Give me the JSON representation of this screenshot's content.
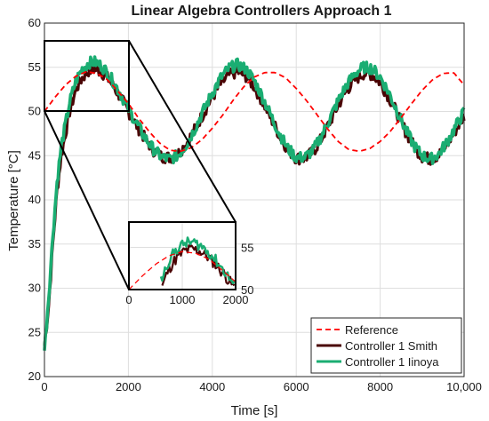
{
  "chart_data": [
    {
      "type": "line",
      "title": "Linear Algebra Controllers Approach 1",
      "xlabel": "Time [s]",
      "ylabel": "Temperature [°C]",
      "xlim": [
        0,
        10000
      ],
      "ylim": [
        20,
        60
      ],
      "xticks": [
        0,
        2000,
        4000,
        6000,
        8000,
        10000
      ],
      "xtick_labels": [
        "0",
        "2000",
        "4000",
        "6000",
        "8000",
        "10,000"
      ],
      "yticks": [
        20,
        25,
        30,
        35,
        40,
        45,
        50,
        55,
        60
      ],
      "grid": true,
      "legend_position": "bottom-right",
      "series": [
        {
          "name": "Reference",
          "style": "dashed",
          "color": "#ff0000",
          "points": [
            [
              0,
              50
            ],
            [
              250,
              51.6
            ],
            [
              500,
              53.0
            ],
            [
              750,
              54.0
            ],
            [
              1000,
              54.5
            ],
            [
              1250,
              54.3
            ],
            [
              1500,
              53.6
            ],
            [
              1750,
              52.3
            ],
            [
              2000,
              50.9
            ],
            [
              2250,
              49.2
            ],
            [
              2500,
              47.7
            ],
            [
              2750,
              46.4
            ],
            [
              3000,
              45.6
            ],
            [
              3250,
              45.5
            ],
            [
              3500,
              45.9
            ],
            [
              3750,
              46.8
            ],
            [
              4000,
              48.1
            ],
            [
              4250,
              49.6
            ],
            [
              4500,
              51.3
            ],
            [
              4750,
              52.8
            ],
            [
              5000,
              53.9
            ],
            [
              5250,
              54.4
            ],
            [
              5500,
              54.4
            ],
            [
              5750,
              53.8
            ],
            [
              6000,
              52.6
            ],
            [
              6250,
              51.2
            ],
            [
              6500,
              49.6
            ],
            [
              6750,
              48.0
            ],
            [
              7000,
              46.6
            ],
            [
              7250,
              45.7
            ],
            [
              7500,
              45.5
            ],
            [
              7750,
              45.8
            ],
            [
              8000,
              46.6
            ],
            [
              8250,
              47.8
            ],
            [
              8500,
              49.3
            ],
            [
              8750,
              50.9
            ],
            [
              9000,
              52.4
            ],
            [
              9250,
              53.6
            ],
            [
              9500,
              54.3
            ],
            [
              9750,
              54.4
            ],
            [
              10000,
              53.0
            ]
          ]
        },
        {
          "name": "Controller 1 Smith",
          "style": "noisy-solid",
          "color": "#4a0404",
          "points": [
            [
              0,
              23.5
            ],
            [
              100,
              28
            ],
            [
              200,
              35
            ],
            [
              300,
              41
            ],
            [
              400,
              45
            ],
            [
              500,
              47.5
            ],
            [
              600,
              50
            ],
            [
              750,
              52.5
            ],
            [
              900,
              53.8
            ],
            [
              1050,
              54.6
            ],
            [
              1200,
              54.8
            ],
            [
              1350,
              54.5
            ],
            [
              1500,
              53.8
            ],
            [
              1650,
              52.8
            ],
            [
              1800,
              51.7
            ],
            [
              2000,
              50
            ],
            [
              2200,
              48.4
            ],
            [
              2400,
              46.9
            ],
            [
              2600,
              45.6
            ],
            [
              2800,
              44.9
            ],
            [
              3000,
              44.8
            ],
            [
              3200,
              45.3
            ],
            [
              3400,
              46.5
            ],
            [
              3600,
              48.1
            ],
            [
              3800,
              49.9
            ],
            [
              4000,
              51.6
            ],
            [
              4200,
              53.1
            ],
            [
              4400,
              54.1
            ],
            [
              4600,
              54.5
            ],
            [
              4800,
              54.0
            ],
            [
              5000,
              52.8
            ],
            [
              5200,
              51.1
            ],
            [
              5400,
              49.2
            ],
            [
              5600,
              47.3
            ],
            [
              5800,
              45.7
            ],
            [
              6000,
              44.7
            ],
            [
              6200,
              44.7
            ],
            [
              6400,
              45.4
            ],
            [
              6600,
              46.9
            ],
            [
              6800,
              48.8
            ],
            [
              7000,
              50.7
            ],
            [
              7200,
              52.4
            ],
            [
              7400,
              53.6
            ],
            [
              7600,
              54.3
            ],
            [
              7800,
              54.2
            ],
            [
              8000,
              53.3
            ],
            [
              8200,
              51.7
            ],
            [
              8400,
              49.8
            ],
            [
              8600,
              47.8
            ],
            [
              8800,
              46.1
            ],
            [
              9000,
              44.9
            ],
            [
              9200,
              44.6
            ],
            [
              9400,
              45.1
            ],
            [
              9600,
              46.3
            ],
            [
              9800,
              47.9
            ],
            [
              10000,
              49.5
            ]
          ]
        },
        {
          "name": "Controller 1 Iinoya",
          "style": "noisy-solid",
          "color": "#1aad72",
          "points": [
            [
              0,
              23.0
            ],
            [
              100,
              29
            ],
            [
              200,
              36
            ],
            [
              300,
              42
            ],
            [
              400,
              46
            ],
            [
              500,
              48.5
            ],
            [
              600,
              51
            ],
            [
              750,
              53.5
            ],
            [
              900,
              54.8
            ],
            [
              1050,
              55.5
            ],
            [
              1200,
              55.6
            ],
            [
              1350,
              55.2
            ],
            [
              1500,
              54.4
            ],
            [
              1650,
              53.3
            ],
            [
              1800,
              52.1
            ],
            [
              2000,
              50.3
            ],
            [
              2200,
              48.6
            ],
            [
              2400,
              47.0
            ],
            [
              2600,
              45.7
            ],
            [
              2800,
              44.8
            ],
            [
              3000,
              44.6
            ],
            [
              3200,
              45.1
            ],
            [
              3400,
              46.4
            ],
            [
              3600,
              48.2
            ],
            [
              3800,
              50.2
            ],
            [
              4000,
              52.1
            ],
            [
              4200,
              53.8
            ],
            [
              4400,
              54.9
            ],
            [
              4600,
              55.3
            ],
            [
              4800,
              54.8
            ],
            [
              5000,
              53.5
            ],
            [
              5200,
              51.6
            ],
            [
              5400,
              49.5
            ],
            [
              5600,
              47.5
            ],
            [
              5800,
              45.8
            ],
            [
              6000,
              44.8
            ],
            [
              6200,
              44.8
            ],
            [
              6400,
              45.6
            ],
            [
              6600,
              47.2
            ],
            [
              6800,
              49.2
            ],
            [
              7000,
              51.2
            ],
            [
              7200,
              53.0
            ],
            [
              7400,
              54.3
            ],
            [
              7600,
              55.0
            ],
            [
              7800,
              54.9
            ],
            [
              8000,
              53.9
            ],
            [
              8200,
              52.2
            ],
            [
              8400,
              50.1
            ],
            [
              8600,
              48.0
            ],
            [
              8800,
              46.2
            ],
            [
              9000,
              45.0
            ],
            [
              9200,
              44.6
            ],
            [
              9400,
              45.2
            ],
            [
              9600,
              46.6
            ],
            [
              9800,
              48.3
            ],
            [
              10000,
              50.0
            ]
          ]
        }
      ]
    },
    {
      "type": "line",
      "title": "",
      "xlabel": "",
      "ylabel": "",
      "xlim": [
        0,
        2000
      ],
      "ylim": [
        50,
        58
      ],
      "xticks": [
        0,
        1000,
        2000
      ],
      "xtick_labels": [
        "0",
        "1000",
        "2000"
      ],
      "yticks": [
        50,
        55
      ],
      "ytick_labels": [
        "50",
        "55"
      ],
      "grid": true,
      "inset_of": "main",
      "inset_region": {
        "x": [
          0,
          2000
        ],
        "y": [
          50,
          58
        ]
      }
    }
  ]
}
